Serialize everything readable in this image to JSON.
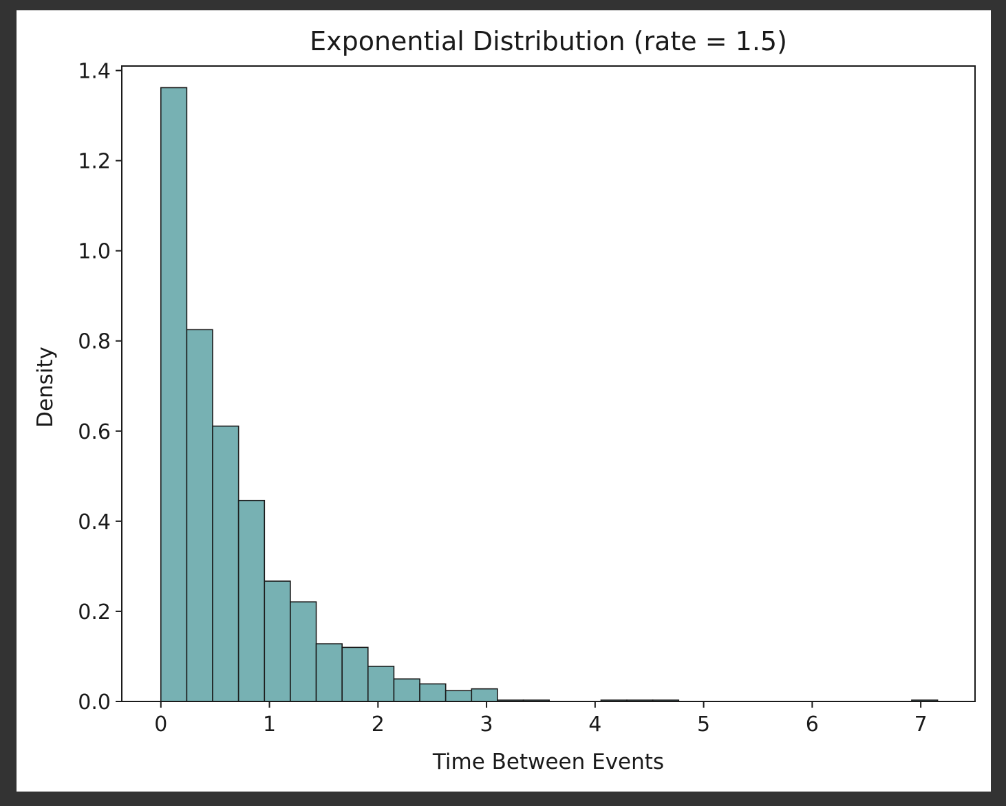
{
  "chart_data": {
    "type": "bar",
    "title": "Exponential Distribution (rate = 1.5)",
    "xlabel": "Time Between Events",
    "ylabel": "Density",
    "xlim": [
      -0.36,
      7.5
    ],
    "ylim": [
      0,
      1.41
    ],
    "xticks": [
      0,
      1,
      2,
      3,
      4,
      5,
      6,
      7
    ],
    "xtick_labels": [
      "0",
      "1",
      "2",
      "3",
      "4",
      "5",
      "6",
      "7"
    ],
    "yticks": [
      0.0,
      0.2,
      0.4,
      0.6,
      0.8,
      1.0,
      1.2,
      1.4
    ],
    "ytick_labels": [
      "0.0",
      "0.2",
      "0.4",
      "0.6",
      "0.8",
      "1.0",
      "1.2",
      "1.4"
    ],
    "grid": false,
    "bar_color": "#77b1b3",
    "edge_color": "#1a1a1a",
    "bin_start": 0.0,
    "bin_width": 0.2385,
    "values": [
      1.362,
      0.825,
      0.611,
      0.446,
      0.267,
      0.221,
      0.128,
      0.12,
      0.078,
      0.05,
      0.039,
      0.024,
      0.028,
      0.003,
      0.003,
      0.0,
      0.0,
      0.003,
      0.003,
      0.003,
      0.0,
      0.0,
      0.0,
      0.0,
      0.0,
      0.0,
      0.0,
      0.0,
      0.0,
      0.003
    ]
  }
}
